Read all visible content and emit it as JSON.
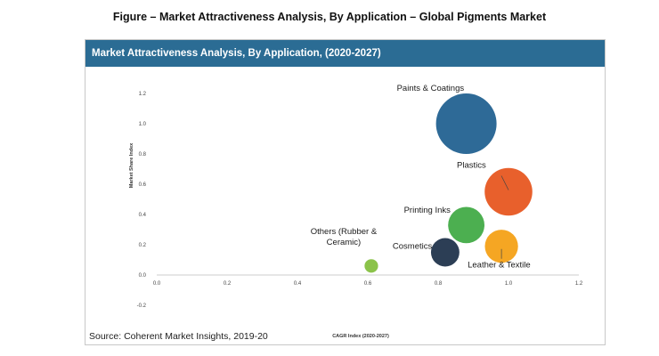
{
  "figure_title": "Figure – Market Attractiveness Analysis, By Application – Global Pigments Market",
  "panel": {
    "header": "Market Attractiveness Analysis, By Application, (2020-2027)",
    "source": "Source: Coherent Market Insights, 2019-20"
  },
  "colors": {
    "header_bg": "#2b6c94",
    "paints": "#2e6a97",
    "plastics": "#e8602c",
    "printing_inks": "#4caf50",
    "cosmetics": "#2c3e55",
    "leather": "#f5a623",
    "others": "#8bc34a"
  },
  "chart_data": {
    "type": "scatter",
    "title": "",
    "xlabel": "CAGR Index (2020-2027)",
    "ylabel": "Market Share Index",
    "xlim": [
      0.0,
      1.2
    ],
    "ylim": [
      -0.2,
      1.2
    ],
    "xticks": [
      "0.0",
      "0.2",
      "0.4",
      "0.6",
      "0.8",
      "1.0",
      "1.2"
    ],
    "yticks": [
      "-0.2",
      "0.0",
      "0.2",
      "0.4",
      "0.6",
      "0.8",
      "1.0",
      "1.2"
    ],
    "grid": false,
    "points": [
      {
        "label": "Paints & Coatings",
        "x": 0.88,
        "y": 1.0,
        "size": 1.0,
        "color": "#2e6a97"
      },
      {
        "label": "Plastics",
        "x": 1.0,
        "y": 0.55,
        "size": 0.62,
        "color": "#e8602c"
      },
      {
        "label": "Printing Inks",
        "x": 0.88,
        "y": 0.33,
        "size": 0.36,
        "color": "#4caf50"
      },
      {
        "label": "Cosmetics",
        "x": 0.82,
        "y": 0.15,
        "size": 0.22,
        "color": "#2c3e55"
      },
      {
        "label": "Leather & Textile",
        "x": 0.98,
        "y": 0.19,
        "size": 0.3,
        "color": "#f5a623"
      },
      {
        "label": "Others (Rubber & Ceramic)",
        "label_lines": [
          "Others (Rubber &",
          "Ceramic)"
        ],
        "x": 0.61,
        "y": 0.06,
        "size": 0.05,
        "color": "#8bc34a"
      }
    ]
  }
}
